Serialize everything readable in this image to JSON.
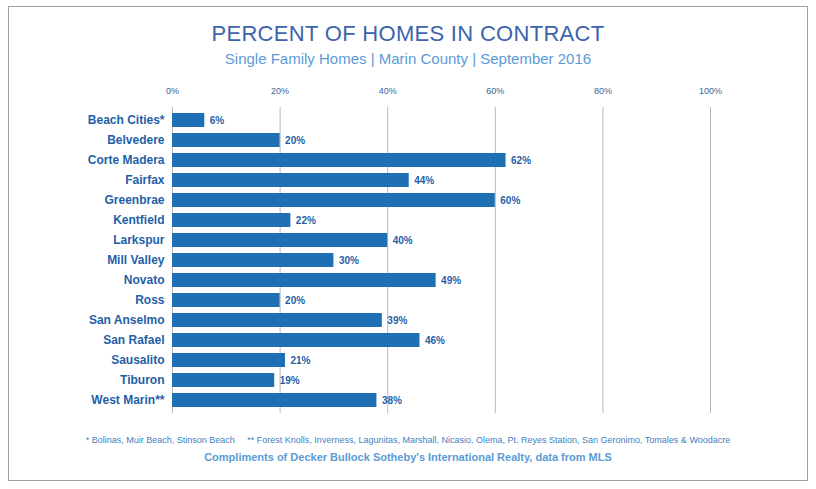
{
  "chart_data": {
    "type": "bar",
    "orientation": "horizontal",
    "title": "PERCENT OF HOMES IN CONTRACT",
    "subtitle": "Single Family Homes | Marin County | September 2016",
    "categories": [
      "Beach Cities*",
      "Belvedere",
      "Corte Madera",
      "Fairfax",
      "Greenbrae",
      "Kentfield",
      "Larkspur",
      "Mill Valley",
      "Novato",
      "Ross",
      "San Anselmo",
      "San Rafael",
      "Sausalito",
      "Tiburon",
      "West Marin**"
    ],
    "values": [
      6,
      20,
      62,
      44,
      60,
      22,
      40,
      30,
      49,
      20,
      39,
      46,
      21,
      19,
      38
    ],
    "value_labels": [
      "6%",
      "20%",
      "62%",
      "44%",
      "60%",
      "22%",
      "40%",
      "30%",
      "49%",
      "20%",
      "39%",
      "46%",
      "21%",
      "19%",
      "38%"
    ],
    "data_labels": true,
    "color": "#1f6fb5",
    "xlim": [
      0,
      100
    ],
    "xticks": [
      {
        "value": 0,
        "label": "0%"
      },
      {
        "value": 20,
        "label": "20%"
      },
      {
        "value": 40,
        "label": "40%"
      },
      {
        "value": 60,
        "label": "60%"
      },
      {
        "value": 80,
        "label": "80%"
      },
      {
        "value": 100,
        "label": "100%"
      }
    ],
    "grid": true,
    "notes": [
      "* Bolinas, Muir Beach, Stinson Beach",
      "** Forest Knolls, Inverness, Lagunitas, Marshall, Nicasio, Olema, Pt. Reyes Station, San Geronimo, Tomales & Woodacre"
    ],
    "source": "Compliments of Decker Bullock Sotheby's International Realty, data from MLS"
  }
}
